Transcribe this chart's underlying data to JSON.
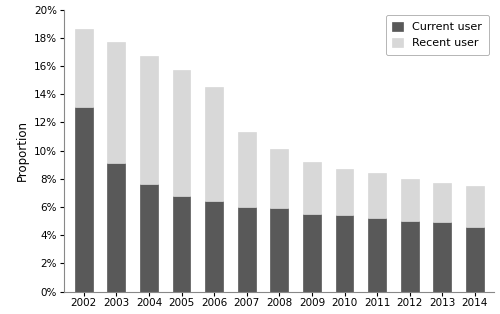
{
  "years": [
    2002,
    2003,
    2004,
    2005,
    2006,
    2007,
    2008,
    2009,
    2010,
    2011,
    2012,
    2013,
    2014
  ],
  "current_users": [
    13.1,
    9.1,
    7.6,
    6.8,
    6.4,
    6.0,
    5.9,
    5.5,
    5.4,
    5.2,
    5.0,
    4.9,
    4.6
  ],
  "totals": [
    18.6,
    17.7,
    16.7,
    15.7,
    14.5,
    11.3,
    10.1,
    9.2,
    8.7,
    8.4,
    8.0,
    7.7,
    7.5
  ],
  "current_color": "#595959",
  "recent_color": "#d8d8d8",
  "ylabel": "Proportion",
  "ylim_min": 0,
  "ylim_max": 20,
  "ytick_step": 2,
  "legend_labels": [
    "Current user",
    "Recent user"
  ],
  "bar_width": 0.55,
  "background_color": "#ffffff",
  "figsize": [
    5.0,
    3.14
  ],
  "dpi": 100
}
